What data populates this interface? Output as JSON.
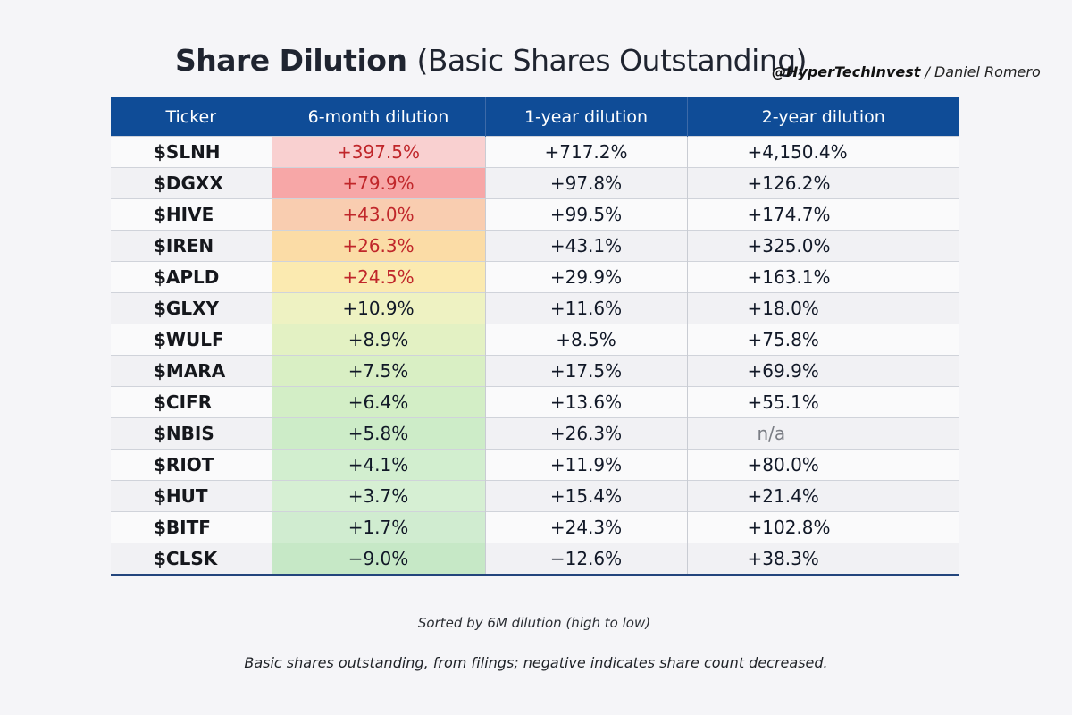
{
  "header": {
    "title_main": "Share Dilution",
    "title_sub": "(Basic Shares Outstanding)",
    "handle": "@HyperTechInvest",
    "separator": " / ",
    "author": "Daniel Romero"
  },
  "table": {
    "columns": [
      "Ticker",
      "6-month dilution",
      "1-year dilution",
      "2-year dilution"
    ],
    "rows": [
      {
        "ticker": "$SLNH",
        "m6": "+397.5%",
        "y1": "+717.2%",
        "y2": "+4,150.4%",
        "m6_value": 397.5,
        "m6_bg": "#f9d0d0"
      },
      {
        "ticker": "$DGXX",
        "m6": "+79.9%",
        "y1": "+97.8%",
        "y2": "+126.2%",
        "m6_value": 79.9,
        "m6_bg": "#f7a7a7"
      },
      {
        "ticker": "$HIVE",
        "m6": "+43.0%",
        "y1": "+99.5%",
        "y2": "+174.7%",
        "m6_value": 43.0,
        "m6_bg": "#f9cdb0"
      },
      {
        "ticker": "$IREN",
        "m6": "+26.3%",
        "y1": "+43.1%",
        "y2": "+325.0%",
        "m6_value": 26.3,
        "m6_bg": "#fbdca6"
      },
      {
        "ticker": "$APLD",
        "m6": "+24.5%",
        "y1": "+29.9%",
        "y2": "+163.1%",
        "m6_value": 24.5,
        "m6_bg": "#fbeab0"
      },
      {
        "ticker": "$GLXY",
        "m6": "+10.9%",
        "y1": "+11.6%",
        "y2": "+18.0%",
        "m6_value": 10.9,
        "m6_bg": "#eef2c2"
      },
      {
        "ticker": "$WULF",
        "m6": "+8.9%",
        "y1": "+8.5%",
        "y2": "+75.8%",
        "m6_value": 8.9,
        "m6_bg": "#e3f1c3"
      },
      {
        "ticker": "$MARA",
        "m6": "+7.5%",
        "y1": "+17.5%",
        "y2": "+69.9%",
        "m6_value": 7.5,
        "m6_bg": "#d9efc4"
      },
      {
        "ticker": "$CIFR",
        "m6": "+6.4%",
        "y1": "+13.6%",
        "y2": "+55.1%",
        "m6_value": 6.4,
        "m6_bg": "#d3eec6"
      },
      {
        "ticker": "$NBIS",
        "m6": "+5.8%",
        "y1": "+26.3%",
        "y2": "n/a",
        "m6_value": 5.8,
        "m6_bg": "#cdecc8"
      },
      {
        "ticker": "$RIOT",
        "m6": "+4.1%",
        "y1": "+11.9%",
        "y2": "+80.0%",
        "m6_value": 4.1,
        "m6_bg": "#d2eecf"
      },
      {
        "ticker": "$HUT",
        "m6": "+3.7%",
        "y1": "+15.4%",
        "y2": "+21.4%",
        "m6_value": 3.7,
        "m6_bg": "#d6efd3"
      },
      {
        "ticker": "$BITF",
        "m6": "+1.7%",
        "y1": "+24.3%",
        "y2": "+102.8%",
        "m6_value": 1.7,
        "m6_bg": "#d0ecd0"
      },
      {
        "ticker": "$CLSK",
        "m6": "−9.0%",
        "y1": "−12.6%",
        "y2": "+38.3%",
        "m6_value": -9.0,
        "m6_bg": "#c6e8c6"
      }
    ]
  },
  "notes": {
    "sort": "Sorted by 6M dilution (high to low)",
    "footnote": "Basic shares outstanding, from filings; negative indicates share count decreased."
  },
  "colors": {
    "header_bg": "#0f4c97",
    "high_dilution_text": "#c0262a"
  }
}
